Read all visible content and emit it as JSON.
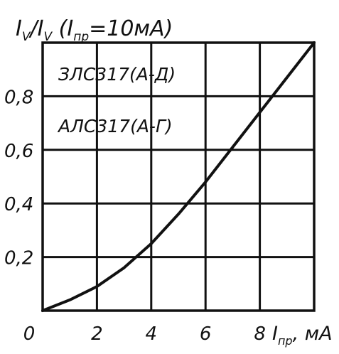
{
  "chart_data": {
    "type": "line",
    "title": "I_V/I_V (I_пр=10мА)",
    "title_parts": {
      "main": "I",
      "sub1": "V",
      "slash": "/I",
      "sub2": "V",
      "paren_open": " (I",
      "sub3": "пр",
      "paren_rest": "=10мА)"
    },
    "xlabel": "I_пр, мА",
    "xlabel_parts": {
      "main": "I",
      "sub": "пр",
      "rest": ", мА"
    },
    "ylabel": "",
    "xlim": [
      0,
      10
    ],
    "ylim": [
      0,
      1.0
    ],
    "x_ticks": [
      0,
      2,
      4,
      6,
      8
    ],
    "x_tick_labels": [
      "0",
      "2",
      "4",
      "6",
      "8"
    ],
    "y_ticks": [
      0.2,
      0.4,
      0.6,
      0.8
    ],
    "y_tick_labels": [
      "0,2",
      "0,4",
      "0,6",
      "0,8"
    ],
    "grid": true,
    "legend_entries": [
      "ЗЛС317(А-Д)",
      "АЛС317(А-Г)"
    ],
    "series": [
      {
        "x": [
          0,
          1,
          2,
          3,
          4,
          5,
          6,
          7,
          8,
          9,
          10
        ],
        "y": [
          0,
          0.04,
          0.09,
          0.16,
          0.25,
          0.36,
          0.48,
          0.61,
          0.74,
          0.87,
          1.0
        ]
      }
    ],
    "line_color": "#111111",
    "grid_color": "#111111"
  }
}
